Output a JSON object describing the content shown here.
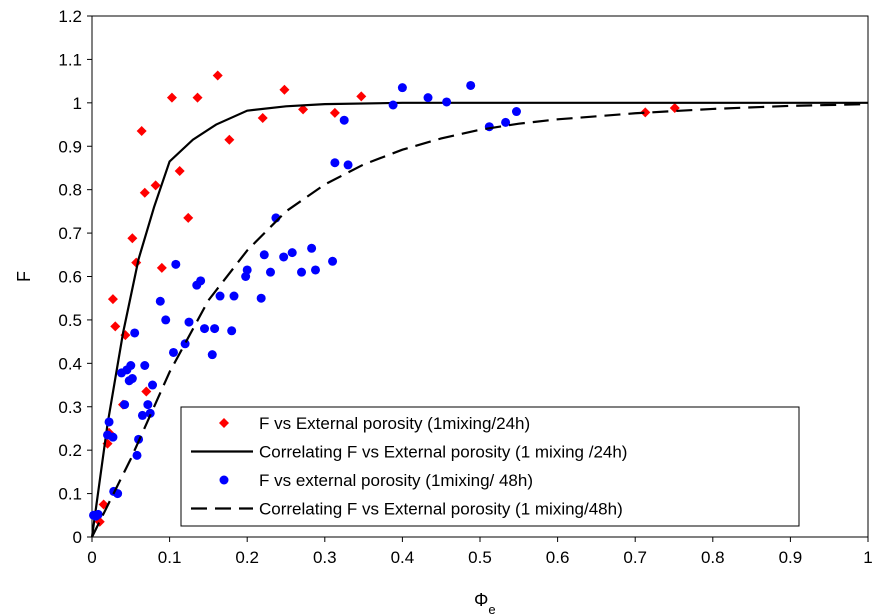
{
  "chart_data": {
    "type": "scatter",
    "xlabel": "Φe",
    "ylabel": "F",
    "xlim": [
      0,
      1
    ],
    "ylim": [
      0,
      1.2
    ],
    "x_ticks": [
      "0",
      "0.1",
      "0.2",
      "0.3",
      "0.4",
      "0.5",
      "0.6",
      "0.7",
      "0.8",
      "0.9",
      "1"
    ],
    "y_ticks": [
      "0",
      "0.1",
      "0.2",
      "0.3",
      "0.4",
      "0.5",
      "0.6",
      "0.7",
      "0.8",
      "0.9",
      "1",
      "1.1",
      "1.2"
    ],
    "grid": false,
    "legend_position": "bottom-right",
    "series": [
      {
        "name": "F vs External porosity (1mixing/24h)",
        "kind": "points",
        "marker": "diamond",
        "color": "#FF0000",
        "points": [
          [
            0.01,
            0.035
          ],
          [
            0.015,
            0.075
          ],
          [
            0.02,
            0.215
          ],
          [
            0.022,
            0.24
          ],
          [
            0.027,
            0.548
          ],
          [
            0.03,
            0.485
          ],
          [
            0.04,
            0.305
          ],
          [
            0.043,
            0.465
          ],
          [
            0.052,
            0.688
          ],
          [
            0.057,
            0.632
          ],
          [
            0.064,
            0.935
          ],
          [
            0.068,
            0.793
          ],
          [
            0.07,
            0.335
          ],
          [
            0.082,
            0.81
          ],
          [
            0.09,
            0.62
          ],
          [
            0.103,
            1.012
          ],
          [
            0.113,
            0.843
          ],
          [
            0.124,
            0.735
          ],
          [
            0.136,
            1.012
          ],
          [
            0.162,
            1.063
          ],
          [
            0.177,
            0.915
          ],
          [
            0.22,
            0.965
          ],
          [
            0.248,
            1.03
          ],
          [
            0.272,
            0.985
          ],
          [
            0.313,
            0.977
          ],
          [
            0.347,
            1.015
          ],
          [
            0.713,
            0.978
          ],
          [
            0.751,
            0.988
          ]
        ]
      },
      {
        "name": "Correlating F vs External porosity (1 mixing /24h)",
        "kind": "line",
        "dash": "solid",
        "color": "#000000",
        "points": [
          [
            0,
            0
          ],
          [
            0.02,
            0.26
          ],
          [
            0.04,
            0.47
          ],
          [
            0.06,
            0.64
          ],
          [
            0.08,
            0.76
          ],
          [
            0.1,
            0.865
          ],
          [
            0.13,
            0.915
          ],
          [
            0.16,
            0.95
          ],
          [
            0.2,
            0.982
          ],
          [
            0.25,
            0.992
          ],
          [
            0.3,
            0.997
          ],
          [
            0.4,
            1.0
          ],
          [
            0.6,
            1.0
          ],
          [
            0.8,
            1.0
          ],
          [
            1.0,
            1.0
          ]
        ]
      },
      {
        "name": "F vs external porosity (1mixing/ 48h)",
        "kind": "points",
        "marker": "circle",
        "color": "#0000FF",
        "points": [
          [
            0.002,
            0.05
          ],
          [
            0.005,
            0.048
          ],
          [
            0.008,
            0.052
          ],
          [
            0.02,
            0.235
          ],
          [
            0.022,
            0.265
          ],
          [
            0.027,
            0.23
          ],
          [
            0.028,
            0.105
          ],
          [
            0.033,
            0.1
          ],
          [
            0.038,
            0.378
          ],
          [
            0.042,
            0.305
          ],
          [
            0.045,
            0.385
          ],
          [
            0.048,
            0.36
          ],
          [
            0.05,
            0.395
          ],
          [
            0.052,
            0.365
          ],
          [
            0.055,
            0.47
          ],
          [
            0.058,
            0.188
          ],
          [
            0.06,
            0.225
          ],
          [
            0.065,
            0.28
          ],
          [
            0.068,
            0.395
          ],
          [
            0.072,
            0.305
          ],
          [
            0.075,
            0.285
          ],
          [
            0.078,
            0.35
          ],
          [
            0.088,
            0.543
          ],
          [
            0.095,
            0.5
          ],
          [
            0.105,
            0.425
          ],
          [
            0.108,
            0.628
          ],
          [
            0.12,
            0.445
          ],
          [
            0.125,
            0.495
          ],
          [
            0.135,
            0.58
          ],
          [
            0.14,
            0.59
          ],
          [
            0.145,
            0.48
          ],
          [
            0.155,
            0.42
          ],
          [
            0.158,
            0.48
          ],
          [
            0.165,
            0.555
          ],
          [
            0.18,
            0.475
          ],
          [
            0.183,
            0.555
          ],
          [
            0.198,
            0.6
          ],
          [
            0.2,
            0.615
          ],
          [
            0.218,
            0.55
          ],
          [
            0.222,
            0.65
          ],
          [
            0.23,
            0.61
          ],
          [
            0.237,
            0.735
          ],
          [
            0.247,
            0.645
          ],
          [
            0.258,
            0.655
          ],
          [
            0.27,
            0.61
          ],
          [
            0.283,
            0.665
          ],
          [
            0.288,
            0.615
          ],
          [
            0.31,
            0.635
          ],
          [
            0.313,
            0.862
          ],
          [
            0.325,
            0.96
          ],
          [
            0.33,
            0.857
          ],
          [
            0.388,
            0.995
          ],
          [
            0.4,
            1.035
          ],
          [
            0.433,
            1.012
          ],
          [
            0.457,
            1.002
          ],
          [
            0.488,
            1.04
          ],
          [
            0.512,
            0.945
          ],
          [
            0.533,
            0.955
          ],
          [
            0.547,
            0.98
          ]
        ]
      },
      {
        "name": "Correlating F vs External porosity (1 mixing/48h)",
        "kind": "line",
        "dash": "dashed",
        "color": "#000000",
        "points": [
          [
            0,
            0
          ],
          [
            0.05,
            0.18
          ],
          [
            0.1,
            0.38
          ],
          [
            0.15,
            0.545
          ],
          [
            0.2,
            0.66
          ],
          [
            0.25,
            0.75
          ],
          [
            0.3,
            0.812
          ],
          [
            0.35,
            0.858
          ],
          [
            0.4,
            0.892
          ],
          [
            0.45,
            0.918
          ],
          [
            0.5,
            0.938
          ],
          [
            0.55,
            0.952
          ],
          [
            0.6,
            0.962
          ],
          [
            0.7,
            0.976
          ],
          [
            0.8,
            0.986
          ],
          [
            0.9,
            0.993
          ],
          [
            1.0,
            0.997
          ]
        ]
      }
    ]
  }
}
